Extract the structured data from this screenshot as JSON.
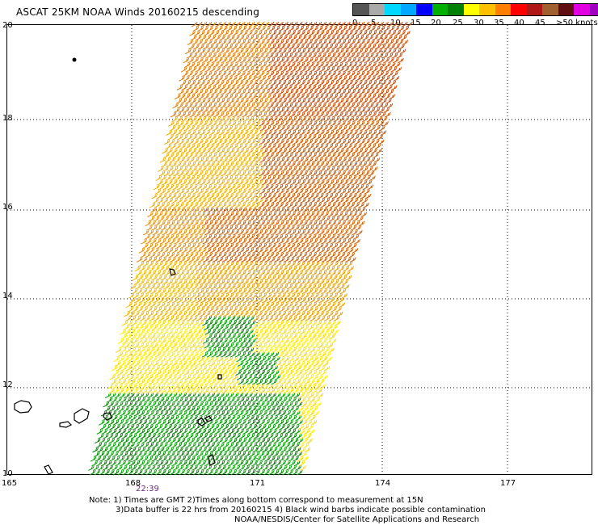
{
  "title": "ASCAT 25KM NOAA Winds 20160215 descending",
  "legend": {
    "colors": [
      "#555555",
      "#aaaaaa",
      "#00d8ff",
      "#00a8ff",
      "#0000ff",
      "#00b000",
      "#008000",
      "#ffff00",
      "#ffc000",
      "#ff8000",
      "#ff0000",
      "#b01818",
      "#a06030",
      "#601010",
      "#e000e0",
      "#a000c0",
      "#400070"
    ],
    "labels": [
      {
        "text": "0"
      },
      {
        "text": "5"
      },
      {
        "text": "10"
      },
      {
        "text": "15"
      },
      {
        "text": "20"
      },
      {
        "text": "25"
      },
      {
        "text": "30"
      },
      {
        "text": "35"
      },
      {
        "text": "40"
      },
      {
        "text": "45"
      },
      {
        "text": ">50 knots"
      }
    ]
  },
  "axes": {
    "lat_labels": [
      "10",
      "12",
      "14",
      "16",
      "18",
      "20"
    ],
    "lon_labels": [
      "165",
      "168",
      "171",
      "174",
      "177"
    ]
  },
  "time_label": "22:39",
  "notes": [
    "Note: 1) Times are GMT 2)Times along bottom correspond to measurement at 15N",
    "3)Data buffer is 22 hrs from 20160215 4) Black wind barbs indicate possible contamination",
    "NOAA/NESDIS/Center for Satellite Applications and Research"
  ]
}
